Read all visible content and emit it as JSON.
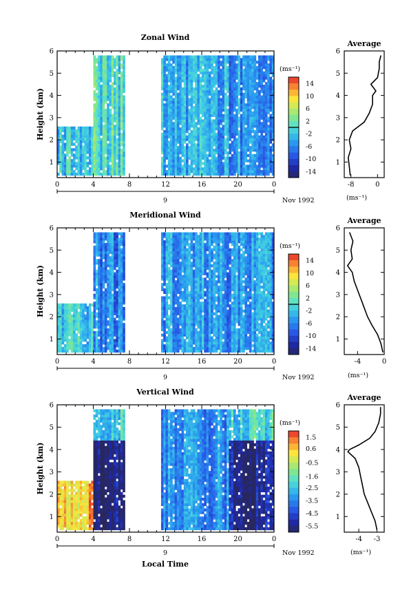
{
  "chart_data": [
    {
      "type": "heatmap",
      "title": "Zonal Wind",
      "ylabel": "Height (km)",
      "xlabel": "",
      "x_ticks": [
        "0",
        "4",
        "8",
        "12",
        "16",
        "20",
        "0"
      ],
      "y_ticks": [
        "1",
        "2",
        "3",
        "4",
        "5",
        "6"
      ],
      "xlim_hours": [
        0,
        24
      ],
      "ylim_km": [
        0.3,
        6
      ],
      "day_label": "9",
      "date_label": "Nov 1992",
      "colorbar": {
        "unit": "(ms⁻¹)",
        "ticks": [
          "14",
          "10",
          "6",
          "2",
          "-2",
          "-6",
          "-10",
          "-14"
        ],
        "range": [
          -16,
          16
        ],
        "zero_level": 0
      },
      "data_blocks": [
        {
          "t0": 0.0,
          "t1": 4.0,
          "z0": 0.4,
          "z1": 2.6,
          "mean": -2
        },
        {
          "t0": 4.0,
          "t1": 7.5,
          "z0": 0.4,
          "z1": 5.8,
          "mean": 0
        },
        {
          "t0": 11.5,
          "t1": 19.0,
          "z0": 0.4,
          "z1": 5.8,
          "mean": -4
        },
        {
          "t0": 19.0,
          "t1": 24.0,
          "z0": 0.4,
          "z1": 5.8,
          "mean": -5
        }
      ],
      "average_profile": {
        "title": "Average",
        "xlabel": "(ms⁻¹)",
        "x_ticks": [
          "-8",
          "0"
        ],
        "xlim": [
          -10,
          2
        ],
        "height_km": [
          0.4,
          0.8,
          1.2,
          1.6,
          2.0,
          2.4,
          2.8,
          3.2,
          3.6,
          4.0,
          4.2,
          4.5,
          4.8,
          5.2,
          5.5,
          5.8
        ],
        "value": [
          -8.2,
          -8.5,
          -8.8,
          -8.0,
          -8.5,
          -7.5,
          -4.0,
          -2.5,
          -1.5,
          -1.5,
          -0.5,
          -2.0,
          0.0,
          0.5,
          0.5,
          1.0
        ]
      }
    },
    {
      "type": "heatmap",
      "title": "Meridional Wind",
      "ylabel": "Height (km)",
      "xlabel": "",
      "x_ticks": [
        "0",
        "4",
        "8",
        "12",
        "16",
        "20",
        "0"
      ],
      "y_ticks": [
        "1",
        "2",
        "3",
        "4",
        "5",
        "6"
      ],
      "xlim_hours": [
        0,
        24
      ],
      "ylim_km": [
        0.3,
        6
      ],
      "day_label": "9",
      "date_label": "Nov 1992",
      "colorbar": {
        "unit": "(ms⁻¹)",
        "ticks": [
          "14",
          "10",
          "6",
          "2",
          "-2",
          "-6",
          "-10",
          "-14"
        ],
        "range": [
          -16,
          16
        ],
        "zero_level": 0
      },
      "data_blocks": [
        {
          "t0": 0.0,
          "t1": 4.0,
          "z0": 0.4,
          "z1": 2.6,
          "mean": -2
        },
        {
          "t0": 4.0,
          "t1": 7.5,
          "z0": 0.4,
          "z1": 5.8,
          "mean": -6
        },
        {
          "t0": 11.5,
          "t1": 19.0,
          "z0": 0.4,
          "z1": 5.8,
          "mean": -5
        },
        {
          "t0": 19.0,
          "t1": 24.0,
          "z0": 0.4,
          "z1": 5.8,
          "mean": -6
        }
      ],
      "average_profile": {
        "title": "Average",
        "xlabel": "(ms⁻¹)",
        "x_ticks": [
          "-4",
          "0"
        ],
        "xlim": [
          -6,
          0
        ],
        "height_km": [
          0.4,
          0.8,
          1.2,
          1.6,
          2.0,
          2.4,
          2.8,
          3.2,
          3.6,
          4.0,
          4.3,
          4.6,
          5.0,
          5.4,
          5.8
        ],
        "value": [
          -0.2,
          -0.5,
          -1.0,
          -1.8,
          -2.5,
          -3.0,
          -3.5,
          -4.0,
          -4.5,
          -4.8,
          -5.5,
          -4.8,
          -5.0,
          -4.7,
          -5.2
        ]
      }
    },
    {
      "type": "heatmap",
      "title": "Vertical Wind",
      "ylabel": "Height (km)",
      "xlabel": "Local Time",
      "x_ticks": [
        "0",
        "4",
        "8",
        "12",
        "16",
        "20",
        "0"
      ],
      "y_ticks": [
        "1",
        "2",
        "3",
        "4",
        "5",
        "6"
      ],
      "xlim_hours": [
        0,
        24
      ],
      "ylim_km": [
        0.3,
        6
      ],
      "day_label": "9",
      "date_label": "Nov 1992",
      "colorbar": {
        "unit": "(ms⁻¹)",
        "ticks": [
          "1.5",
          "0.6",
          "-0.5",
          "-1.6",
          "-2.5",
          "-3.5",
          "-4.5",
          "-5.5"
        ],
        "range": [
          -6,
          2
        ],
        "zero_level": null
      },
      "data_blocks": [
        {
          "t0": 0.0,
          "t1": 4.0,
          "z0": 0.4,
          "z1": 2.6,
          "mean": 0.6
        },
        {
          "t0": 4.0,
          "t1": 7.5,
          "z0": 4.4,
          "z1": 5.8,
          "mean": -2.2
        },
        {
          "t0": 4.0,
          "t1": 7.5,
          "z0": 0.4,
          "z1": 4.4,
          "mean": -6.0
        },
        {
          "t0": 11.5,
          "t1": 19.0,
          "z0": 0.4,
          "z1": 5.8,
          "mean": -3.5
        },
        {
          "t0": 19.0,
          "t1": 24.0,
          "z0": 4.4,
          "z1": 5.8,
          "mean": -2.2
        },
        {
          "t0": 19.0,
          "t1": 24.0,
          "z0": 0.4,
          "z1": 4.4,
          "mean": -5.5
        }
      ],
      "average_profile": {
        "title": "Average",
        "xlabel": "(ms⁻¹)",
        "x_ticks": [
          "-4",
          "-3"
        ],
        "xlim": [
          -4.8,
          -2.6
        ],
        "height_km": [
          0.4,
          0.8,
          1.2,
          1.6,
          2.0,
          2.4,
          2.8,
          3.2,
          3.6,
          3.9,
          4.0,
          4.2,
          4.5,
          4.8,
          5.2,
          5.6,
          5.9
        ],
        "value": [
          -3.0,
          -3.1,
          -3.3,
          -3.5,
          -3.7,
          -3.8,
          -3.9,
          -4.0,
          -4.2,
          -4.6,
          -4.5,
          -4.0,
          -3.4,
          -3.1,
          -2.9,
          -2.8,
          -2.8
        ]
      }
    }
  ]
}
